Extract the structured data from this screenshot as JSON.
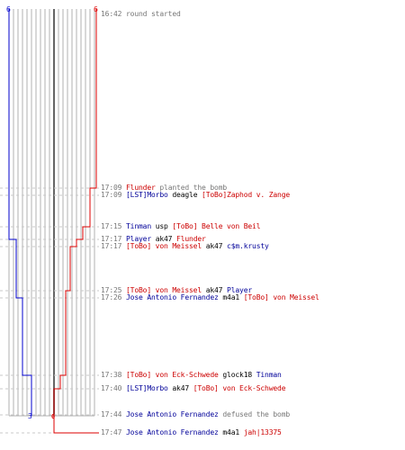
{
  "colors": {
    "blue": "#0000cc",
    "red": "#dd0000",
    "grid": "#b0b0b0",
    "dashed": "#c8c8c8",
    "center": "#666666",
    "text_time": "#777777"
  },
  "counts": {
    "blue_start": "6",
    "red_start": "6",
    "blue_end": "3",
    "red_end": "0"
  },
  "events": [
    {
      "time": "16:42",
      "parts": [
        {
          "text": "round started",
          "team": "note"
        }
      ]
    },
    {
      "time": "17:09",
      "parts": [
        {
          "text": "Flunder",
          "team": "red"
        },
        {
          "text": "planted the bomb",
          "team": "note"
        }
      ]
    },
    {
      "time": "17:09",
      "parts": [
        {
          "text": "[LST]Morbo",
          "team": "blue"
        },
        {
          "text": "deagle",
          "team": "wpn"
        },
        {
          "text": "[ToBo]Zaphod v. Zange",
          "team": "red"
        }
      ]
    },
    {
      "time": "17:15",
      "parts": [
        {
          "text": "Tinman",
          "team": "blue"
        },
        {
          "text": "usp",
          "team": "wpn"
        },
        {
          "text": "[ToBo] Belle von Beil",
          "team": "red"
        }
      ]
    },
    {
      "time": "17:17",
      "parts": [
        {
          "text": "Player",
          "team": "blue"
        },
        {
          "text": "ak47",
          "team": "wpn"
        },
        {
          "text": "Flunder",
          "team": "red"
        }
      ]
    },
    {
      "time": "17:17",
      "parts": [
        {
          "text": "[ToBo] von Meissel",
          "team": "red"
        },
        {
          "text": "ak47",
          "team": "wpn"
        },
        {
          "text": "c$m.krusty",
          "team": "blue"
        }
      ]
    },
    {
      "time": "17:25",
      "parts": [
        {
          "text": "[ToBo] von Meissel",
          "team": "red"
        },
        {
          "text": "ak47",
          "team": "wpn"
        },
        {
          "text": "Player",
          "team": "blue"
        }
      ]
    },
    {
      "time": "17:26",
      "parts": [
        {
          "text": "Jose Antonio Fernandez",
          "team": "blue"
        },
        {
          "text": "m4a1",
          "team": "wpn"
        },
        {
          "text": "[ToBo] von Meissel",
          "team": "red"
        }
      ]
    },
    {
      "time": "17:38",
      "parts": [
        {
          "text": "[ToBo] von Eck-Schwede",
          "team": "red"
        },
        {
          "text": "glock18",
          "team": "wpn"
        },
        {
          "text": "Tinman",
          "team": "blue"
        }
      ]
    },
    {
      "time": "17:40",
      "parts": [
        {
          "text": "[LST]Morbo",
          "team": "blue"
        },
        {
          "text": "ak47",
          "team": "wpn"
        },
        {
          "text": "[ToBo] von Eck-Schwede",
          "team": "red"
        }
      ]
    },
    {
      "time": "17:44",
      "parts": [
        {
          "text": "Jose Antonio Fernandez",
          "team": "blue"
        },
        {
          "text": "defused the bomb",
          "team": "note"
        }
      ]
    },
    {
      "time": "17:47",
      "parts": [
        {
          "text": "Jose Antonio Fernandez",
          "team": "blue"
        },
        {
          "text": "m4a1",
          "team": "wpn"
        },
        {
          "text": "jah|13375",
          "team": "red"
        }
      ]
    }
  ]
}
